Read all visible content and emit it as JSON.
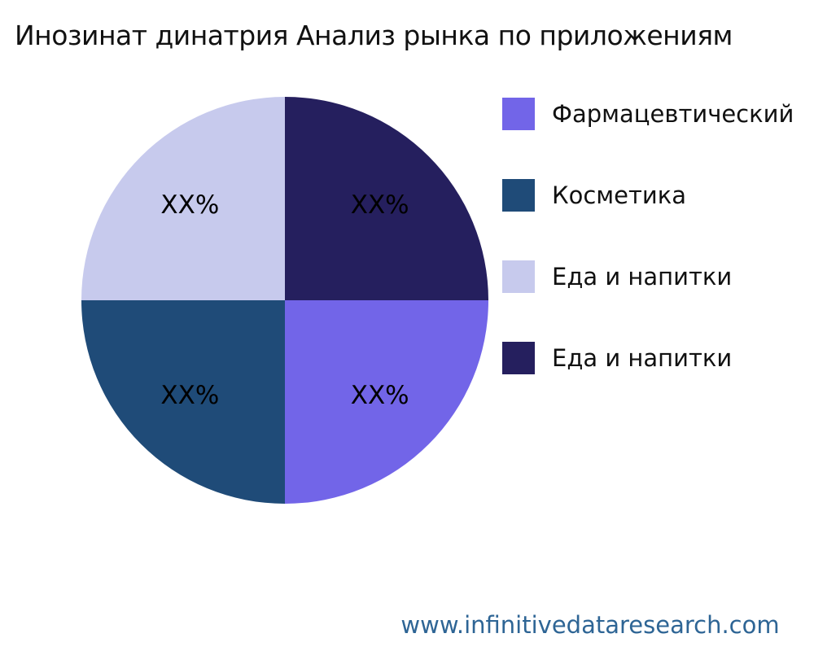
{
  "chart_data": {
    "type": "pie",
    "title": "Инозинат динатрия Анализ рынка по приложениям",
    "unit": "%",
    "values_masked": true,
    "rotation_deg": 90,
    "direction": "clockwise",
    "legend_position": "right",
    "slices": [
      {
        "label": "Фармацевтический",
        "value": 25,
        "display": "XX%",
        "color": "#7265E8"
      },
      {
        "label": "Косметика",
        "value": 25,
        "display": "XX%",
        "color": "#1F4B78"
      },
      {
        "label": "Еда и напитки",
        "value": 25,
        "display": "XX%",
        "color": "#C7CAED"
      },
      {
        "label": "Еда и напитки",
        "value": 25,
        "display": "XX%",
        "color": "#251F5E"
      }
    ]
  },
  "footer": {
    "watermark": "www.infinitivedataresearch.com"
  }
}
